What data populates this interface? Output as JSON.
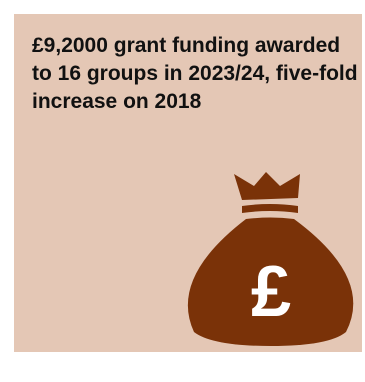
{
  "card": {
    "headline": "£9,2000 grant funding awarded to 16 groups in 2023/24, five-fold increase on 2018",
    "background_color": "#e4c7b5"
  },
  "illustration": {
    "icon": "money-bag-icon",
    "symbol": "£",
    "bag_color": "#7a3208"
  }
}
